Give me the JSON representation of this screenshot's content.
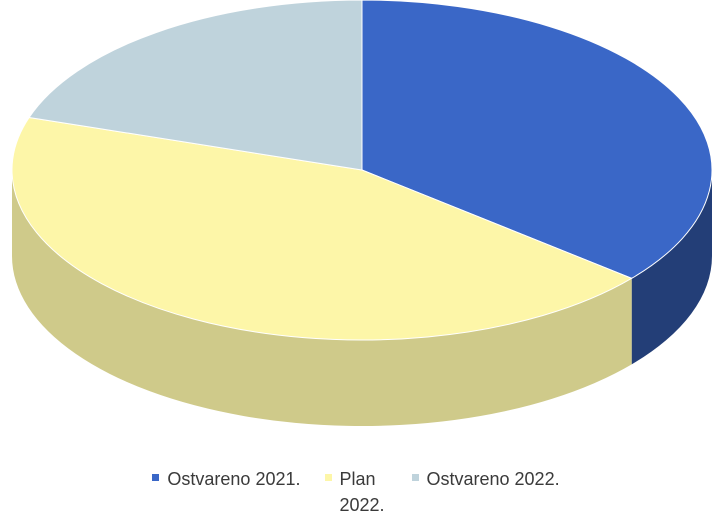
{
  "chart_data": {
    "type": "pie",
    "title": "",
    "series": [
      {
        "name": "",
        "labels": [
          "Ostvareno 2021.",
          "Plan 2022.",
          "Ostvareno 2022."
        ],
        "values": [
          36,
          44,
          20
        ]
      }
    ],
    "colors": {
      "Ostvareno 2021.": "#3a67c7",
      "Plan 2022.": "#fdf6a8",
      "Ostvareno 2022.": "#bfd3dc"
    },
    "legend_position": "bottom",
    "style": "3d-tilted"
  },
  "legend": [
    {
      "label": "Ostvareno 2021.",
      "sep": ".",
      "color": "#3a67c7"
    },
    {
      "label": "Plan 2022.",
      "sep": "",
      "color": "#fdf6a8"
    },
    {
      "label": "Ostvareno 2022.",
      "sep": ".",
      "color": "#bfd3dc"
    }
  ]
}
